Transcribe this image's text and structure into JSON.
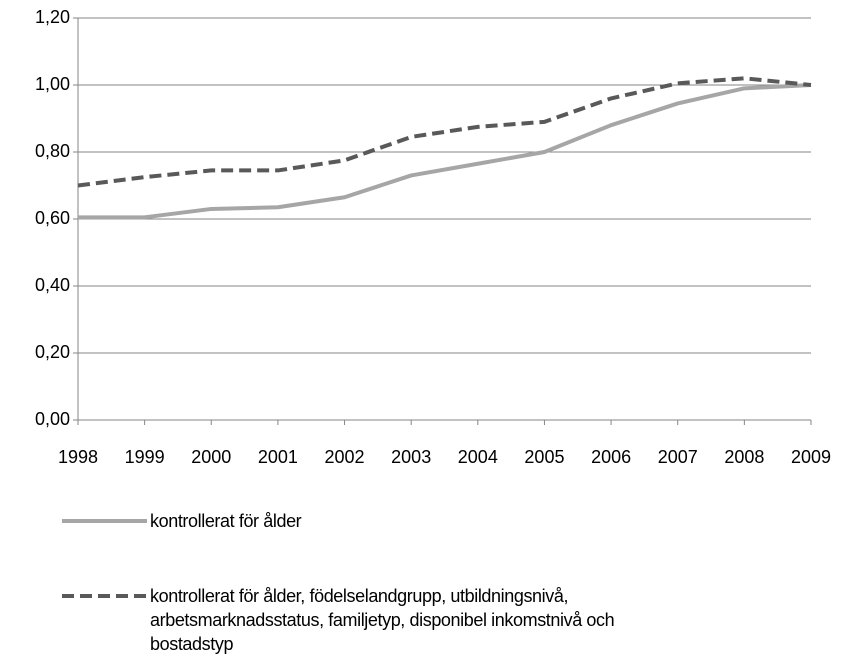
{
  "chart_data": {
    "type": "line",
    "categories": [
      "1998",
      "1999",
      "2000",
      "2001",
      "2002",
      "2003",
      "2004",
      "2005",
      "2006",
      "2007",
      "2008",
      "2009"
    ],
    "series": [
      {
        "name": "kontrollerat för ålder",
        "color": "#a6a6a6",
        "dash": false,
        "values": [
          0.605,
          0.605,
          0.63,
          0.635,
          0.665,
          0.73,
          0.765,
          0.8,
          0.88,
          0.945,
          0.99,
          1.0
        ]
      },
      {
        "name": "kontrollerat för ålder, födelselandgrupp, utbildningsnivå, arbetsmarknadsstatus, familjetyp, disponibel inkomstnivå och bostadstyp",
        "color": "#595959",
        "dash": true,
        "values": [
          0.7,
          0.725,
          0.745,
          0.745,
          0.775,
          0.845,
          0.875,
          0.89,
          0.96,
          1.005,
          1.02,
          1.0
        ]
      }
    ],
    "ylim": [
      0,
      1.2
    ],
    "yticks": [
      {
        "value": 0,
        "label": "0,00"
      },
      {
        "value": 0.2,
        "label": "0,20"
      },
      {
        "value": 0.4,
        "label": "0,40"
      },
      {
        "value": 0.6,
        "label": "0,60"
      },
      {
        "value": 0.8,
        "label": "0,80"
      },
      {
        "value": 1.0,
        "label": "1,00"
      },
      {
        "value": 1.2,
        "label": "1,20"
      }
    ],
    "grid": true
  }
}
